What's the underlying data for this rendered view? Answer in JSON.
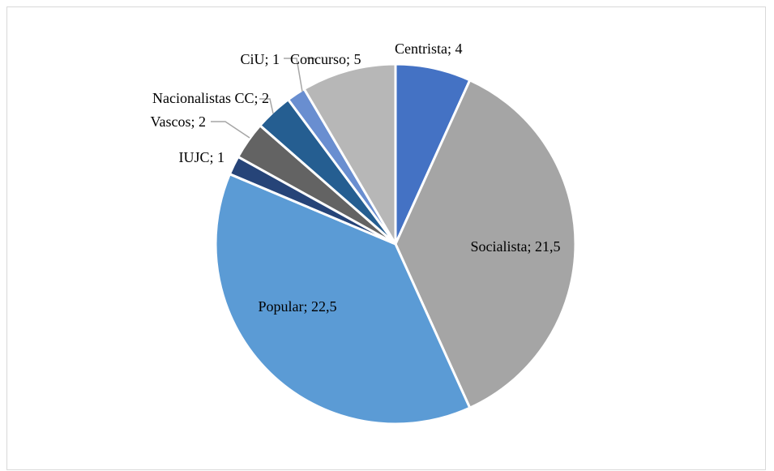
{
  "chart_data": {
    "type": "pie",
    "title": "",
    "slices": [
      {
        "name": "Centrista",
        "value": 4,
        "label": "Centrista; 4",
        "color": "#4472c4"
      },
      {
        "name": "Socialista",
        "value": 21.5,
        "label": "Socialista; 21,5",
        "color": "#a5a5a5"
      },
      {
        "name": "Popular",
        "value": 22.5,
        "label": "Popular; 22,5",
        "color": "#5b9bd5"
      },
      {
        "name": "IUJC",
        "value": 1,
        "label": "IUJC; 1",
        "color": "#264478"
      },
      {
        "name": "Vascos",
        "value": 2,
        "label": "Vascos; 2",
        "color": "#636363"
      },
      {
        "name": "Nacionalistas CC",
        "value": 2,
        "label": "Nacionalistas CC; 2",
        "color": "#255e91"
      },
      {
        "name": "CiU",
        "value": 1,
        "label": "CiU; 1",
        "color": "#698ed0"
      },
      {
        "name": "Concurso",
        "value": 5,
        "label": "Concurso; 5",
        "color": "#b7b7b7"
      }
    ],
    "legend": "none",
    "start_angle": "12 o'clock",
    "direction": "clockwise"
  }
}
